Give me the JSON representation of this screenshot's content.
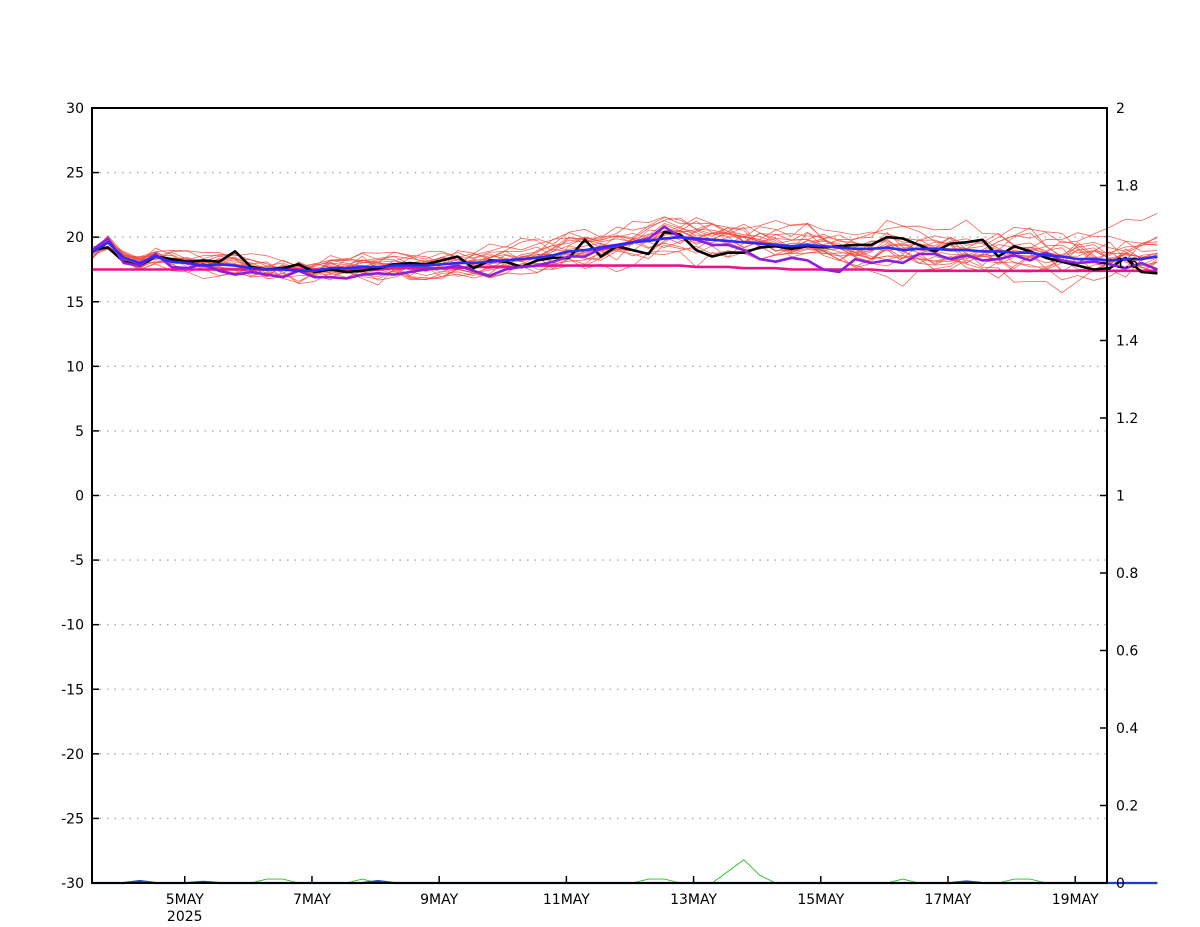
{
  "chart_data": {
    "type": "line",
    "title": "",
    "xlabel": "",
    "ylabel": "",
    "x_range": [
      "2025-05-03T13:00",
      "2025-05-19T12:00"
    ],
    "ylim": [
      -30,
      30
    ],
    "y2lim": [
      0,
      2
    ],
    "grid": "horizontal dotted at left-axis major ticks",
    "legend": "none",
    "x_ticks": [
      {
        "date": "2025-05-05",
        "label": "5MAY",
        "sublabel": "2025"
      },
      {
        "date": "2025-05-07",
        "label": "7MAY"
      },
      {
        "date": "2025-05-09",
        "label": "9MAY"
      },
      {
        "date": "2025-05-11",
        "label": "11MAY"
      },
      {
        "date": "2025-05-13",
        "label": "13MAY"
      },
      {
        "date": "2025-05-15",
        "label": "15MAY"
      },
      {
        "date": "2025-05-17",
        "label": "17MAY"
      },
      {
        "date": "2025-05-19",
        "label": "19MAY"
      }
    ],
    "y_ticks_left": [
      "30",
      "25",
      "20",
      "15",
      "10",
      "5",
      "0",
      "-5",
      "-10",
      "-15",
      "-20",
      "-25",
      "-30"
    ],
    "y_ticks_right": [
      "2",
      "1.8",
      "1.6",
      "1.4",
      "1.2",
      "1",
      "0.8",
      "0.6",
      "0.4",
      "0.2",
      "0"
    ],
    "x_start": "2025-05-03T13:00",
    "x_step_hours": 6,
    "ensemble_count": 20,
    "colors": {
      "ensemble": "#f24a3c",
      "observed": "#000000",
      "ensemble_mean": "#2b2bff",
      "purple_series": "#8a1fe0",
      "climatology": "#ee1289",
      "bottom_green": "#22c022",
      "bottom_blue": "#1a3cd0"
    },
    "series": [
      {
        "color": "#000000",
        "axis": "left",
        "values": [
          19.0,
          19.2,
          18.1,
          17.8,
          18.5,
          18.3,
          18.1,
          18.2,
          18.1,
          18.9,
          17.7,
          17.5,
          17.6,
          17.9,
          17.3,
          17.5,
          17.3,
          17.4,
          17.6,
          17.9,
          18.0,
          17.9,
          18.2,
          18.5,
          17.6,
          18.2,
          18.1,
          17.7,
          18.2,
          18.4,
          18.4,
          19.8,
          18.5,
          19.3,
          19.0,
          18.7,
          20.4,
          20.2,
          19.0,
          18.5,
          18.8,
          18.8,
          19.2,
          19.3,
          19.1,
          19.3,
          19.2,
          19.3,
          19.4,
          19.4,
          20.0,
          19.9,
          19.4,
          18.9,
          19.5,
          19.6,
          19.8,
          18.5,
          19.3,
          18.9,
          18.4,
          18.1,
          17.8,
          17.5,
          17.6,
          18.4,
          17.3,
          17.2
        ]
      },
      {
        "color": "#2b2bff",
        "axis": "left",
        "values": [
          18.8,
          19.6,
          18.4,
          18.0,
          18.5,
          18.1,
          18.0,
          17.8,
          17.9,
          17.8,
          17.6,
          17.5,
          17.5,
          17.4,
          17.4,
          17.6,
          17.6,
          17.7,
          17.7,
          17.8,
          17.8,
          17.8,
          17.9,
          18.0,
          18.0,
          18.1,
          18.2,
          18.3,
          18.4,
          18.6,
          18.9,
          19.0,
          19.2,
          19.4,
          19.6,
          19.7,
          19.9,
          20.0,
          19.9,
          19.8,
          19.7,
          19.6,
          19.5,
          19.4,
          19.3,
          19.4,
          19.3,
          19.2,
          19.1,
          19.1,
          19.2,
          19.0,
          19.1,
          19.1,
          19.0,
          19.0,
          18.9,
          18.9,
          18.8,
          18.8,
          18.6,
          18.5,
          18.3,
          18.3,
          18.2,
          18.3,
          18.3,
          18.5
        ]
      },
      {
        "color": "#8a1fe0",
        "axis": "left",
        "values": [
          19.0,
          19.9,
          18.0,
          17.8,
          18.7,
          17.7,
          17.6,
          17.9,
          17.4,
          17.1,
          17.3,
          17.1,
          16.9,
          17.4,
          16.9,
          16.9,
          16.8,
          17.1,
          17.2,
          17.1,
          17.3,
          17.5,
          17.6,
          17.8,
          17.4,
          17.0,
          17.5,
          17.7,
          17.8,
          18.1,
          18.5,
          18.5,
          19.1,
          19.3,
          19.6,
          19.9,
          20.8,
          20.0,
          19.8,
          19.4,
          19.4,
          19.0,
          18.3,
          18.1,
          18.4,
          18.2,
          17.5,
          17.3,
          18.3,
          18.0,
          18.2,
          18.0,
          18.7,
          18.7,
          18.3,
          18.6,
          18.2,
          18.3,
          18.6,
          18.2,
          18.8,
          18.2,
          18.0,
          18.1,
          17.9,
          17.6,
          18.0,
          17.5
        ]
      },
      {
        "color": "#ee1289",
        "axis": "left",
        "values": [
          17.5,
          17.5,
          17.5,
          17.5,
          17.5,
          17.5,
          17.5,
          17.5,
          17.5,
          17.5,
          17.5,
          17.5,
          17.5,
          17.5,
          17.5,
          17.5,
          17.5,
          17.5,
          17.5,
          17.6,
          17.6,
          17.6,
          17.6,
          17.6,
          17.7,
          17.7,
          17.7,
          17.7,
          17.8,
          17.8,
          17.8,
          17.8,
          17.8,
          17.8,
          17.8,
          17.8,
          17.8,
          17.8,
          17.7,
          17.7,
          17.7,
          17.6,
          17.6,
          17.6,
          17.5,
          17.5,
          17.5,
          17.5,
          17.5,
          17.5,
          17.4,
          17.4,
          17.4,
          17.4,
          17.4,
          17.4,
          17.4,
          17.4,
          17.4,
          17.4,
          17.4,
          17.4,
          17.4,
          17.4,
          17.4,
          17.4,
          17.4,
          17.4
        ]
      },
      {
        "color": "#22c022",
        "axis": "right",
        "values": [
          0,
          0,
          0,
          0,
          0,
          0,
          0,
          0,
          0,
          0,
          0,
          0.01,
          0.01,
          0,
          0,
          0,
          0,
          0.01,
          0,
          0,
          0,
          0,
          0,
          0,
          0,
          0,
          0,
          0,
          0,
          0,
          0,
          0,
          0,
          0,
          0,
          0.01,
          0.01,
          0,
          0,
          0,
          0.03,
          0.06,
          0.02,
          0,
          0,
          0,
          0,
          0,
          0,
          0,
          0,
          0.01,
          0,
          0,
          0,
          0,
          0,
          0,
          0.01,
          0.01,
          0,
          0,
          0,
          0,
          0,
          0,
          0,
          0
        ]
      },
      {
        "color": "#1a3cd0",
        "axis": "right",
        "values": [
          0,
          0,
          0,
          0.005,
          0,
          0,
          0,
          0.003,
          0,
          0,
          0,
          0,
          0,
          0,
          0,
          0,
          0,
          0,
          0.005,
          0,
          0,
          0,
          0,
          0,
          0,
          0,
          0,
          0,
          0,
          0,
          0,
          0,
          0,
          0,
          0,
          0,
          0,
          0,
          0,
          0,
          0,
          0,
          0,
          0,
          0,
          0,
          0,
          0,
          0,
          0,
          0,
          0,
          0,
          0,
          0,
          0.004,
          0,
          0,
          0,
          0,
          0,
          0,
          0,
          0,
          0,
          0,
          0,
          0
        ]
      }
    ]
  }
}
